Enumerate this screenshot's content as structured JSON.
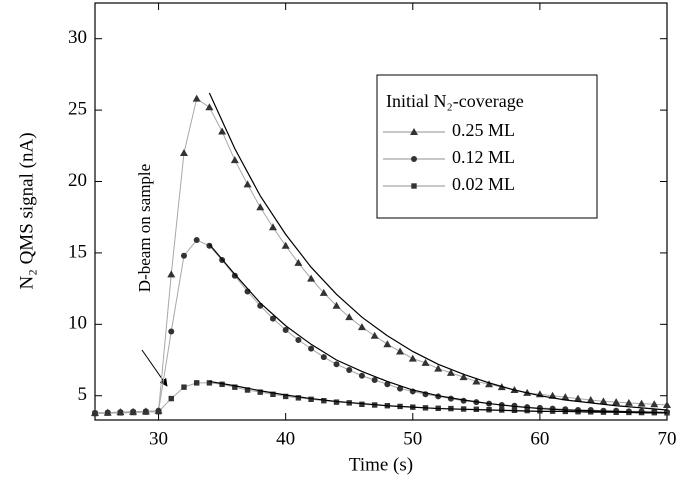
{
  "chart_data": {
    "type": "line",
    "xlabel": "Time (s)",
    "ylabel": "N₂ QMS signal (nA)",
    "annotation": "D-beam on sample",
    "legend_title": "Initial N₂-coverage",
    "xlim": [
      25,
      70
    ],
    "ylim": [
      3.3,
      32.5
    ],
    "xticks": [
      30,
      40,
      50,
      60,
      70
    ],
    "yticks": [
      5,
      10,
      15,
      20,
      25,
      30
    ],
    "x": [
      25,
      26,
      27,
      28,
      29,
      30,
      31,
      32,
      33,
      34,
      35,
      36,
      37,
      38,
      39,
      40,
      41,
      42,
      43,
      44,
      45,
      46,
      47,
      48,
      49,
      50,
      51,
      52,
      53,
      54,
      55,
      56,
      57,
      58,
      59,
      60,
      61,
      62,
      63,
      64,
      65,
      66,
      67,
      68,
      69,
      70
    ],
    "series": [
      {
        "name": "0.25 ML",
        "color": "#333333",
        "line_color": "#a8a8a8",
        "marker": "triangle",
        "values": [
          3.8,
          3.82,
          3.85,
          3.88,
          3.9,
          3.95,
          13.5,
          22,
          25.8,
          25.2,
          23.5,
          21.5,
          19.8,
          18.2,
          16.8,
          15.5,
          14.3,
          13.2,
          12.2,
          11.3,
          10.5,
          9.8,
          9.2,
          8.6,
          8.1,
          7.6,
          7.3,
          6.9,
          6.6,
          6.3,
          6.0,
          5.8,
          5.6,
          5.4,
          5.2,
          5.1,
          5.0,
          4.9,
          4.8,
          4.7,
          4.6,
          4.55,
          4.5,
          4.45,
          4.4,
          4.35
        ]
      },
      {
        "name": "0.12 ML",
        "color": "#333333",
        "line_color": "#a8a8a8",
        "marker": "circle",
        "values": [
          3.8,
          3.82,
          3.85,
          3.88,
          3.9,
          3.95,
          9.5,
          14.8,
          15.9,
          15.5,
          14.5,
          13.4,
          12.3,
          11.3,
          10.4,
          9.6,
          8.9,
          8.3,
          7.7,
          7.2,
          6.8,
          6.4,
          6.1,
          5.8,
          5.5,
          5.3,
          5.1,
          4.95,
          4.8,
          4.65,
          4.55,
          4.45,
          4.35,
          4.3,
          4.2,
          4.15,
          4.1,
          4.05,
          4.0,
          4.0,
          3.95,
          3.95,
          3.9,
          3.9,
          3.9,
          3.85
        ]
      },
      {
        "name": "0.02 ML",
        "color": "#333333",
        "line_color": "#a8a8a8",
        "marker": "square",
        "values": [
          3.75,
          3.78,
          3.8,
          3.82,
          3.85,
          3.88,
          4.8,
          5.6,
          5.9,
          5.9,
          5.8,
          5.6,
          5.4,
          5.25,
          5.1,
          4.95,
          4.85,
          4.75,
          4.65,
          4.55,
          4.5,
          4.4,
          4.35,
          4.3,
          4.25,
          4.2,
          4.15,
          4.12,
          4.1,
          4.07,
          4.05,
          4.02,
          4.0,
          3.98,
          3.96,
          3.94,
          3.92,
          3.9,
          3.88,
          3.87,
          3.85,
          3.84,
          3.83,
          3.82,
          3.81,
          3.8
        ]
      }
    ],
    "fits": {
      "x": [
        34,
        36,
        38,
        40,
        42,
        44,
        46,
        48,
        50,
        52,
        54,
        56,
        58,
        60,
        62,
        64,
        66,
        68,
        70
      ],
      "series": [
        {
          "color": "#000000",
          "values": [
            26.2,
            22.3,
            19.0,
            16.3,
            14.0,
            12.1,
            10.5,
            9.2,
            8.1,
            7.2,
            6.5,
            5.9,
            5.4,
            5.0,
            4.7,
            4.5,
            4.3,
            4.15,
            4.0
          ]
        },
        {
          "color": "#000000",
          "values": [
            15.6,
            13.5,
            11.5,
            9.9,
            8.6,
            7.5,
            6.7,
            6.0,
            5.4,
            5.0,
            4.7,
            4.45,
            4.25,
            4.1,
            4.0,
            3.95,
            3.9,
            3.85,
            3.8
          ]
        },
        {
          "color": "#000000",
          "values": [
            6.0,
            5.7,
            5.35,
            5.05,
            4.8,
            4.6,
            4.45,
            4.3,
            4.2,
            4.1,
            4.05,
            4.0,
            3.95,
            3.9,
            3.9,
            3.85,
            3.85,
            3.8,
            3.8
          ]
        }
      ]
    }
  }
}
